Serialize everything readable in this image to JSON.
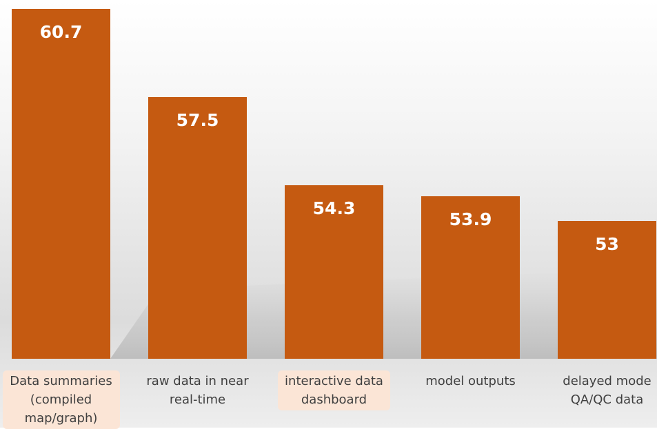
{
  "chart_data": {
    "type": "bar",
    "categories": [
      "Data summaries (compiled map/graph)",
      "raw data in near real-time",
      "interactive data dashboard",
      "model outputs",
      "delayed mode QA/QC data"
    ],
    "values": [
      60.7,
      57.5,
      54.3,
      53.9,
      53
    ],
    "color": "#c55a11",
    "highlighted_categories": [
      0,
      2
    ],
    "highlight_color": "#fbe5d6",
    "ylim": [
      48,
      61
    ]
  }
}
